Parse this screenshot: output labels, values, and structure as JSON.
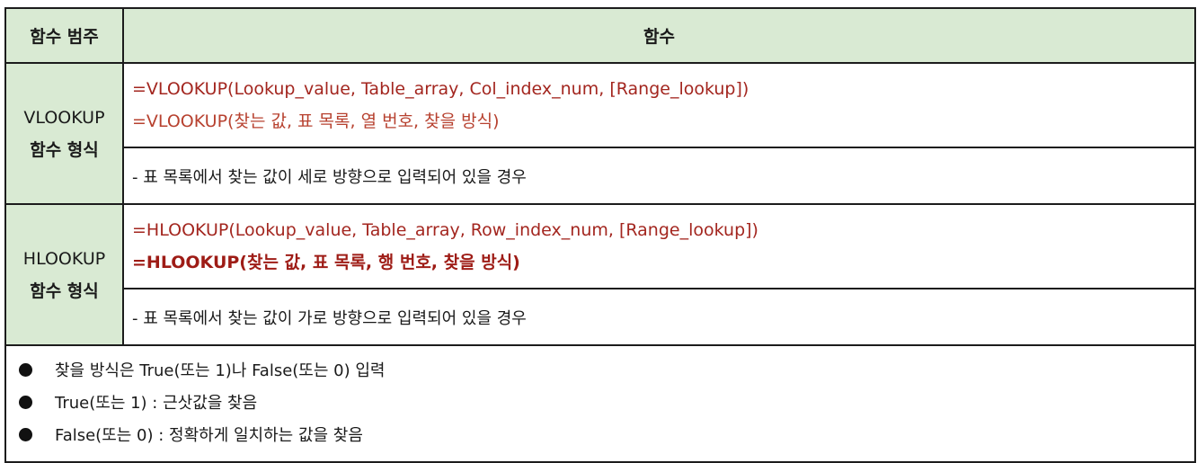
{
  "header": {
    "category": "함수 범주",
    "function": "함수"
  },
  "vlookup": {
    "category_line1": "VLOOKUP",
    "category_line2": "함수 형식",
    "formula_en": "=VLOOKUP(Lookup_value, Table_array, Col_index_num, [Range_lookup])",
    "formula_ko": "=VLOOKUP(찾는 값, 표 목록, 열 번호, 찾을 방식)",
    "description": "- 표 목록에서 찾는 값이 세로 방향으로 입력되어 있을 경우"
  },
  "hlookup": {
    "category_line1": "HLOOKUP",
    "category_line2": "함수 형식",
    "formula_en": "=HLOOKUP(Lookup_value, Table_array, Row_index_num, [Range_lookup])",
    "formula_ko": "=HLOOKUP(찾는 값, 표 목록, 행 번호, 찾을 방식)",
    "description": "- 표 목록에서 찾는 값이 가로 방향으로 입력되어 있을 경우"
  },
  "notes": [
    "찾을 방식은 True(또는 1)나 False(또는 0) 입력",
    "True(또는 1) : 근삿값을 찾음",
    "False(또는 0) : 정확하게 일치하는 값을 찾음"
  ],
  "colors": {
    "header_bg": "#d9ead3",
    "formula_text": "#a3261f",
    "border": "#1c1c1c"
  }
}
